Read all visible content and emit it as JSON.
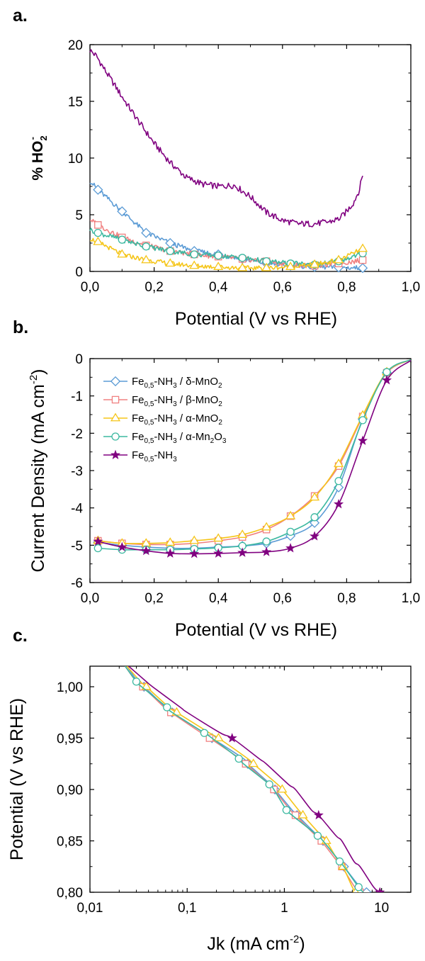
{
  "colors": {
    "delta": "#5b9bd5",
    "beta": "#f08080",
    "alpha": "#f5c518",
    "alpha_mn2o3": "#3bb8a0",
    "fe": "#800080"
  },
  "chart_data": [
    {
      "panel": "a.",
      "type": "line",
      "xlabel": "Potential (V vs RHE)",
      "ylabel_main": "% HO",
      "ylabel_sub": "2",
      "ylabel_sup": "-",
      "xlim": [
        0,
        1.0
      ],
      "ylim": [
        0,
        20
      ],
      "xticks": [
        0,
        0.2,
        0.4,
        0.6,
        0.8,
        1.0
      ],
      "xtick_labels": [
        "0,0",
        "0,2",
        "0,4",
        "0,6",
        "0,8",
        "1,0"
      ],
      "yticks": [
        0,
        5,
        10,
        15,
        20
      ],
      "ytick_labels": [
        "0",
        "5",
        "10",
        "15",
        "20"
      ],
      "series": [
        {
          "key": "fe",
          "marker": "none",
          "x": [
            0,
            0.02,
            0.05,
            0.08,
            0.1,
            0.15,
            0.2,
            0.25,
            0.3,
            0.35,
            0.4,
            0.45,
            0.5,
            0.55,
            0.6,
            0.65,
            0.7,
            0.75,
            0.78,
            0.8,
            0.82,
            0.84,
            0.85
          ],
          "y": [
            19.5,
            19.0,
            17.6,
            16.3,
            15.4,
            13.3,
            11.3,
            9.6,
            8.3,
            7.7,
            7.5,
            7.6,
            6.6,
            5.2,
            4.5,
            4.2,
            4.2,
            4.4,
            4.7,
            5.3,
            6.0,
            7.2,
            8.6
          ]
        },
        {
          "key": "delta",
          "marker": "diamond",
          "x": [
            0,
            0.025,
            0.1,
            0.175,
            0.25,
            0.325,
            0.4,
            0.475,
            0.55,
            0.625,
            0.7,
            0.775,
            0.85
          ],
          "y": [
            8.0,
            7.2,
            5.3,
            3.4,
            2.5,
            1.8,
            1.5,
            1.1,
            0.7,
            0.5,
            0.4,
            0.35,
            0.3
          ]
        },
        {
          "key": "beta",
          "marker": "square",
          "x": [
            0,
            0.025,
            0.1,
            0.175,
            0.25,
            0.325,
            0.4,
            0.475,
            0.55,
            0.625,
            0.7,
            0.775,
            0.85
          ],
          "y": [
            4.6,
            4.1,
            3.0,
            2.3,
            1.8,
            1.5,
            1.3,
            1.1,
            0.9,
            0.6,
            0.5,
            0.7,
            1.0
          ]
        },
        {
          "key": "alpha_mn2o3",
          "marker": "circle",
          "x": [
            0,
            0.025,
            0.1,
            0.175,
            0.25,
            0.325,
            0.4,
            0.475,
            0.55,
            0.625,
            0.7,
            0.775,
            0.85
          ],
          "y": [
            3.7,
            3.4,
            2.8,
            2.2,
            1.8,
            1.5,
            1.4,
            1.2,
            0.9,
            0.7,
            0.6,
            0.9,
            1.6
          ]
        },
        {
          "key": "alpha",
          "marker": "triangle",
          "x": [
            0,
            0.025,
            0.1,
            0.175,
            0.25,
            0.325,
            0.4,
            0.475,
            0.55,
            0.625,
            0.7,
            0.775,
            0.85
          ],
          "y": [
            2.9,
            2.6,
            1.5,
            1.0,
            0.7,
            0.5,
            0.4,
            0.3,
            0.3,
            0.4,
            0.6,
            1.0,
            2.0
          ]
        }
      ]
    },
    {
      "panel": "b.",
      "type": "line",
      "xlabel": "Potential (V vs RHE)",
      "ylabel": "Current Density (mA cm",
      "ylabel_sup": "-2",
      "ylabel_end": ")",
      "xlim": [
        0,
        1.0
      ],
      "ylim": [
        -6,
        0
      ],
      "xticks": [
        0,
        0.2,
        0.4,
        0.6,
        0.8,
        1.0
      ],
      "xtick_labels": [
        "0,0",
        "0,2",
        "0,4",
        "0,6",
        "0,8",
        "1,0"
      ],
      "yticks": [
        -6,
        -5,
        -4,
        -3,
        -2,
        -1,
        0
      ],
      "ytick_labels": [
        "-6",
        "-5",
        "-4",
        "-3",
        "-2",
        "-1",
        "0"
      ],
      "x": [
        0.025,
        0.1,
        0.175,
        0.25,
        0.325,
        0.4,
        0.475,
        0.55,
        0.625,
        0.7,
        0.775,
        0.85,
        0.925,
        1.0
      ],
      "legend": [
        {
          "key": "delta",
          "marker": "diamond",
          "t1": "Fe",
          "s1": "0,5",
          "t2": "-NH",
          "s2": "3",
          "t3": " / δ-MnO",
          "s3": "2"
        },
        {
          "key": "beta",
          "marker": "square",
          "t1": "Fe",
          "s1": "0,5",
          "t2": "-NH",
          "s2": "3",
          "t3": " / β-MnO",
          "s3": "2"
        },
        {
          "key": "alpha",
          "marker": "triangle",
          "t1": "Fe",
          "s1": "0,5",
          "t2": "-NH",
          "s2": "3",
          "t3": " / α-MnO",
          "s3": "2"
        },
        {
          "key": "alpha_mn2o3",
          "marker": "circle",
          "t1": "Fe",
          "s1": "0,5",
          "t2": "-NH",
          "s2": "3",
          "t3": " / α-Mn",
          "s3": "2",
          "t4": "O",
          "s4": "3"
        },
        {
          "key": "fe",
          "marker": "star",
          "t1": "Fe",
          "s1": "0,5",
          "t2": "-NH",
          "s2": "3",
          "t3": "",
          "s3": ""
        }
      ],
      "series": [
        {
          "key": "delta",
          "marker": "diamond",
          "y": [
            -4.92,
            -5.0,
            -5.05,
            -5.08,
            -5.08,
            -5.05,
            -5.02,
            -4.95,
            -4.75,
            -4.4,
            -3.45,
            -1.62,
            -0.38,
            -0.03
          ]
        },
        {
          "key": "beta",
          "marker": "square",
          "y": [
            -4.88,
            -4.95,
            -4.98,
            -4.98,
            -4.95,
            -4.88,
            -4.78,
            -4.58,
            -4.22,
            -3.68,
            -2.88,
            -1.55,
            -0.38,
            -0.03
          ]
        },
        {
          "key": "alpha",
          "marker": "triangle",
          "y": [
            -4.88,
            -4.95,
            -4.95,
            -4.93,
            -4.88,
            -4.82,
            -4.72,
            -4.52,
            -4.22,
            -3.72,
            -2.82,
            -1.52,
            -0.36,
            -0.03
          ]
        },
        {
          "key": "alpha_mn2o3",
          "marker": "circle",
          "y": [
            -5.08,
            -5.12,
            -5.12,
            -5.12,
            -5.1,
            -5.07,
            -5.02,
            -4.9,
            -4.64,
            -4.25,
            -3.28,
            -1.65,
            -0.36,
            -0.03
          ]
        },
        {
          "key": "fe",
          "marker": "star",
          "y": [
            -4.9,
            -5.05,
            -5.15,
            -5.22,
            -5.23,
            -5.22,
            -5.2,
            -5.18,
            -5.08,
            -4.76,
            -3.9,
            -2.2,
            -0.58,
            -0.05
          ]
        }
      ]
    },
    {
      "panel": "c.",
      "type": "line",
      "xscale": "log",
      "xlabel": "Jk (mA cm",
      "xlabel_sup": "-2",
      "xlabel_end": ")",
      "ylabel": "Potential (V vs RHE)",
      "xlim": [
        0.01,
        20
      ],
      "ylim": [
        0.8,
        1.02
      ],
      "xticks": [
        0.01,
        0.1,
        1,
        10
      ],
      "xtick_labels": [
        "0,01",
        "0,1",
        "1",
        "10"
      ],
      "yticks": [
        0.8,
        0.85,
        0.9,
        0.95,
        1.0
      ],
      "ytick_labels": [
        "0,80",
        "0,85",
        "0,90",
        "0,95",
        "1,00"
      ],
      "y": [
        1.02,
        1.005,
        1.0,
        0.98,
        0.975,
        0.955,
        0.95,
        0.93,
        0.925,
        0.905,
        0.9,
        0.88,
        0.875,
        0.855,
        0.85,
        0.83,
        0.825,
        0.805,
        0.8
      ],
      "series": [
        {
          "key": "delta",
          "marker": "diamond",
          "x": [
            0.024,
            0.031,
            0.036,
            0.06,
            0.07,
            0.15,
            0.18,
            0.38,
            0.42,
            0.72,
            0.8,
            1.2,
            1.35,
            2.2,
            2.5,
            3.7,
            4.1,
            6.0,
            7.0
          ],
          "mark_idx": [
            2,
            4,
            6,
            8,
            10,
            12,
            14,
            16,
            18
          ]
        },
        {
          "key": "beta",
          "marker": "square",
          "x": [
            0.023,
            0.03,
            0.035,
            0.058,
            0.068,
            0.14,
            0.17,
            0.35,
            0.4,
            0.7,
            0.78,
            1.15,
            1.3,
            2.1,
            2.4,
            3.5,
            3.9,
            5.3,
            6.0
          ],
          "mark_idx": [
            2,
            4,
            6,
            8,
            10,
            12,
            14,
            16,
            18
          ]
        },
        {
          "key": "alpha",
          "marker": "triangle",
          "x": [
            0.024,
            0.033,
            0.038,
            0.065,
            0.078,
            0.17,
            0.21,
            0.42,
            0.48,
            0.85,
            0.95,
            1.4,
            1.55,
            2.4,
            2.7,
            3.6,
            4.0,
            5.0,
            5.4
          ],
          "mark_idx": [
            2,
            4,
            6,
            8,
            10,
            12,
            14,
            16,
            18
          ]
        },
        {
          "key": "alpha_mn2o3",
          "marker": "circle",
          "x": [
            0.023,
            0.03,
            0.034,
            0.062,
            0.07,
            0.15,
            0.18,
            0.34,
            0.38,
            0.7,
            0.78,
            1.05,
            1.2,
            2.2,
            2.5,
            3.7,
            4.1,
            5.8,
            6.5
          ],
          "mark_idx": [
            1,
            3,
            5,
            7,
            9,
            11,
            13,
            15,
            17
          ]
        },
        {
          "key": "fe",
          "marker": "star",
          "x": [
            0.025,
            0.038,
            0.044,
            0.085,
            0.1,
            0.22,
            0.29,
            0.55,
            0.65,
            1.1,
            1.3,
            1.9,
            2.25,
            3.4,
            3.9,
            5.2,
            6.0,
            8.3,
            9.6
          ],
          "mark_idx": [
            6,
            12,
            18
          ]
        }
      ]
    }
  ]
}
